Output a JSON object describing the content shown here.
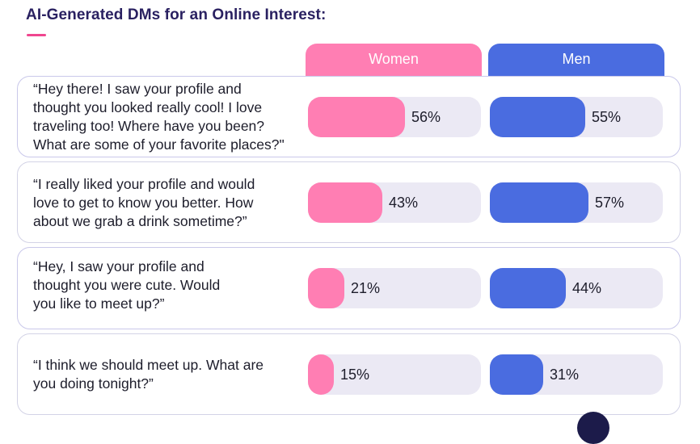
{
  "title": "AI-Generated DMs for an Online Interest:",
  "colors": {
    "women": "#ff7eb3",
    "men": "#4a6ce0",
    "track": "#ebe9f4",
    "title": "#2a2161",
    "accent": "#f0468f"
  },
  "chart_data": {
    "type": "bar",
    "title": "AI-Generated DMs for an Online Interest:",
    "categories": [
      "“Hey there! I saw your profile and thought you looked really cool! I love traveling too! Where have you been? What are some of your favorite places?\"",
      "“I really liked your profile and would love to get to know you better. How about we grab a drink sometime?”",
      "“Hey, I saw your profile and thought you were cute. Would you like to meet up?”",
      "“I think we should meet up. What are you doing tonight?”"
    ],
    "category_lines": [
      [
        "“Hey there! I saw your profile and",
        "thought you looked really cool! I love",
        "traveling too! Where have you been?",
        "What are some of your favorite places?\""
      ],
      [
        "“I really liked your profile and would",
        "love to get to know you better. How",
        "about we grab a drink sometime?”"
      ],
      [
        "“Hey, I saw your profile and",
        "thought you were cute. Would",
        "you like to meet up?”"
      ],
      [
        "“I think we should meet up. What are",
        "you doing tonight?”"
      ]
    ],
    "series": [
      {
        "name": "Women",
        "values": [
          56,
          43,
          21,
          15
        ],
        "labels": [
          "56%",
          "43%",
          "21%",
          "15%"
        ]
      },
      {
        "name": "Men",
        "values": [
          55,
          57,
          44,
          31
        ],
        "labels": [
          "55%",
          "57%",
          "44%",
          "31%"
        ]
      }
    ],
    "ylim": [
      0,
      100
    ],
    "unit": "%",
    "legend": "column headers"
  }
}
